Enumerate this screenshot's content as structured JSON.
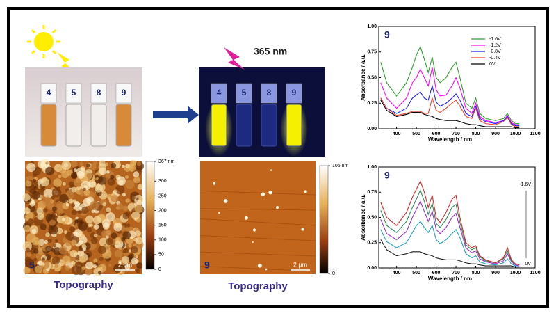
{
  "photos": {
    "daylight_vials": [
      "4",
      "5",
      "8",
      "9"
    ],
    "uv_label": "365 nm",
    "uv_vials": [
      "4",
      "5",
      "8",
      "9"
    ]
  },
  "afm": [
    {
      "sample": "5",
      "scale": "2 µm",
      "caption": "Topography",
      "cbar_lim": [
        0,
        367
      ],
      "cbar_ticks": [
        {
          "value": 367,
          "label": "367 nm"
        },
        300,
        250,
        200,
        150,
        100,
        50,
        0
      ]
    },
    {
      "sample": "9",
      "scale": "2 µm",
      "caption": "Topography",
      "cbar_lim": [
        0,
        105
      ],
      "cbar_ticks": [
        {
          "value": 105,
          "label": "105 nm"
        },
        0
      ]
    }
  ],
  "chart_data": [
    {
      "type": "line",
      "annotation": "9",
      "x_label": "Wavelength / nm",
      "y_label": "Absorbance / a.u.",
      "x": [
        320,
        350,
        400,
        450,
        480,
        500,
        520,
        540,
        560,
        580,
        600,
        620,
        650,
        680,
        700,
        720,
        750,
        780,
        800,
        820,
        850,
        900,
        940,
        960,
        980,
        1000,
        1020
      ],
      "xlim": [
        310,
        1100
      ],
      "xticks": [
        400,
        500,
        600,
        700,
        800,
        900,
        1000,
        1100
      ],
      "ylim": [
        0,
        1
      ],
      "yticks": [
        {
          "value": 0,
          "label": "0.00"
        },
        {
          "value": 0.25,
          "label": "0.25"
        },
        {
          "value": 0.5,
          "label": "0.50"
        },
        {
          "value": 0.75,
          "label": "0.75"
        },
        {
          "value": 1,
          "label": "1.00"
        }
      ],
      "legend": "upper right",
      "series": [
        {
          "name": "-1.6V",
          "color": "#2ca02c",
          "values": [
            0.65,
            0.45,
            0.32,
            0.45,
            0.6,
            0.72,
            0.8,
            0.68,
            0.55,
            0.7,
            0.5,
            0.45,
            0.5,
            0.6,
            0.65,
            0.5,
            0.25,
            0.2,
            0.3,
            0.15,
            0.1,
            0.08,
            0.1,
            0.15,
            0.08,
            0.05,
            0.05
          ]
        },
        {
          "name": "-1.2V",
          "color": "#ff00ff",
          "values": [
            0.45,
            0.3,
            0.2,
            0.3,
            0.45,
            0.5,
            0.58,
            0.5,
            0.42,
            0.6,
            0.38,
            0.32,
            0.33,
            0.42,
            0.5,
            0.4,
            0.2,
            0.15,
            0.25,
            0.12,
            0.08,
            0.06,
            0.08,
            0.13,
            0.06,
            0.04,
            0.04
          ]
        },
        {
          "name": "-0.8V",
          "color": "#1f1fff",
          "values": [
            0.3,
            0.2,
            0.15,
            0.2,
            0.3,
            0.33,
            0.36,
            0.3,
            0.28,
            0.42,
            0.26,
            0.22,
            0.25,
            0.3,
            0.34,
            0.28,
            0.15,
            0.12,
            0.22,
            0.1,
            0.07,
            0.05,
            0.08,
            0.12,
            0.05,
            0.03,
            0.03
          ]
        },
        {
          "name": "-0.4V",
          "color": "#e8402a",
          "values": [
            0.3,
            0.2,
            0.13,
            0.15,
            0.17,
            0.17,
            0.17,
            0.15,
            0.15,
            0.3,
            0.18,
            0.16,
            0.2,
            0.25,
            0.28,
            0.22,
            0.12,
            0.1,
            0.2,
            0.08,
            0.05,
            0.04,
            0.07,
            0.11,
            0.04,
            0.02,
            0.02
          ]
        },
        {
          "name": "0V",
          "color": "#000000",
          "values": [
            0.28,
            0.18,
            0.12,
            0.14,
            0.16,
            0.16,
            0.16,
            0.14,
            0.13,
            0.12,
            0.1,
            0.09,
            0.08,
            0.08,
            0.08,
            0.07,
            0.05,
            0.04,
            0.04,
            0.03,
            0.02,
            0.02,
            0.02,
            0.02,
            0.02,
            0.01,
            0.01
          ]
        }
      ]
    },
    {
      "type": "line",
      "annotation": "9",
      "x_label": "Wavelength / nm",
      "y_label": "Absorbance / a.u.",
      "x": [
        320,
        350,
        400,
        450,
        480,
        500,
        520,
        540,
        560,
        580,
        600,
        620,
        650,
        680,
        700,
        720,
        750,
        780,
        800,
        820,
        850,
        900,
        940,
        960,
        980,
        1000,
        1020
      ],
      "xlim": [
        310,
        1100
      ],
      "xticks": [
        400,
        500,
        600,
        700,
        800,
        900,
        1000,
        1100
      ],
      "ylim": [
        0,
        1
      ],
      "yticks": [
        {
          "value": 0,
          "label": "0.00"
        },
        {
          "value": 0.25,
          "label": "0.25"
        },
        {
          "value": 0.5,
          "label": "0.50"
        },
        {
          "value": 0.75,
          "label": "0.75"
        },
        {
          "value": 1,
          "label": "1.00"
        }
      ],
      "series": [
        {
          "name": "0V",
          "color": "#1a1a1a",
          "values": [
            0.28,
            0.18,
            0.12,
            0.14,
            0.16,
            0.16,
            0.16,
            0.14,
            0.13,
            0.12,
            0.1,
            0.09,
            0.08,
            0.08,
            0.08,
            0.07,
            0.05,
            0.04,
            0.04,
            0.03,
            0.02,
            0.02,
            0.02,
            0.02,
            0.02,
            0.01,
            0.01
          ]
        },
        {
          "color": "#1f9fbf",
          "values": [
            0.38,
            0.26,
            0.2,
            0.25,
            0.35,
            0.42,
            0.46,
            0.4,
            0.35,
            0.42,
            0.28,
            0.24,
            0.28,
            0.34,
            0.38,
            0.3,
            0.14,
            0.1,
            0.12,
            0.06,
            0.04,
            0.03,
            0.05,
            0.09,
            0.04,
            0.02,
            0.02
          ]
        },
        {
          "color": "#9b30c8",
          "values": [
            0.48,
            0.34,
            0.28,
            0.36,
            0.5,
            0.58,
            0.66,
            0.56,
            0.46,
            0.56,
            0.38,
            0.34,
            0.4,
            0.5,
            0.54,
            0.4,
            0.2,
            0.15,
            0.17,
            0.09,
            0.06,
            0.04,
            0.07,
            0.14,
            0.06,
            0.03,
            0.02
          ]
        },
        {
          "color": "#2e8b57",
          "values": [
            0.57,
            0.42,
            0.35,
            0.46,
            0.6,
            0.68,
            0.77,
            0.66,
            0.53,
            0.64,
            0.44,
            0.4,
            0.48,
            0.6,
            0.63,
            0.45,
            0.23,
            0.18,
            0.2,
            0.11,
            0.07,
            0.05,
            0.09,
            0.17,
            0.07,
            0.04,
            0.03
          ]
        },
        {
          "name": "-1.6V",
          "color": "#d62728",
          "values": [
            0.65,
            0.5,
            0.42,
            0.55,
            0.7,
            0.78,
            0.86,
            0.75,
            0.6,
            0.72,
            0.5,
            0.45,
            0.55,
            0.68,
            0.72,
            0.5,
            0.25,
            0.2,
            0.22,
            0.12,
            0.08,
            0.05,
            0.1,
            0.2,
            0.08,
            0.04,
            0.03
          ]
        }
      ]
    }
  ]
}
